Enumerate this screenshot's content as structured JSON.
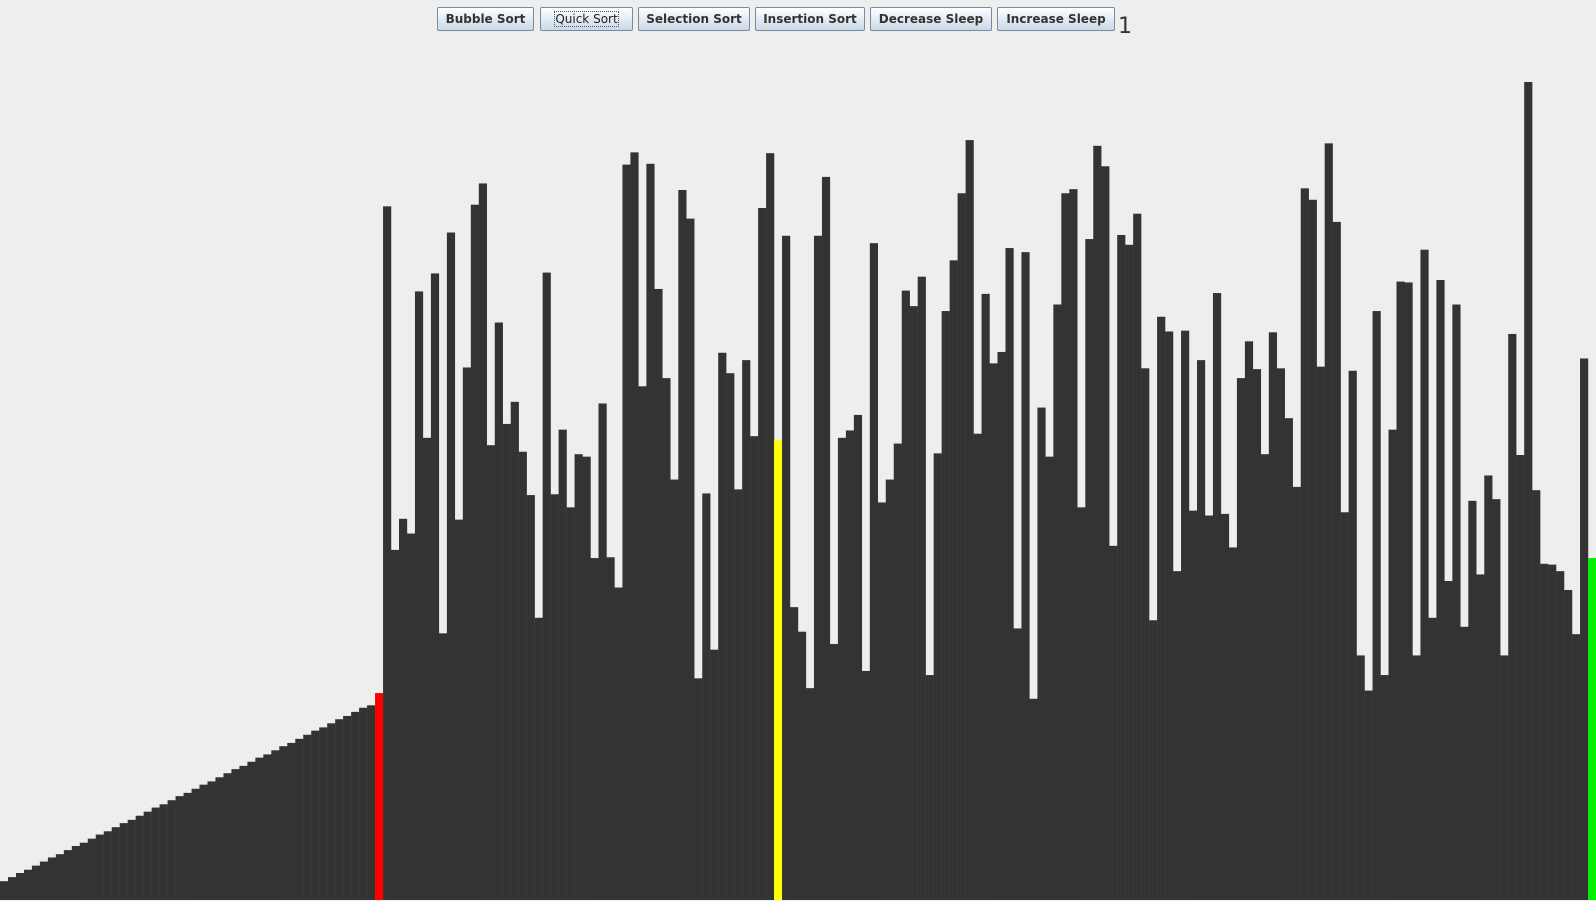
{
  "toolbar": {
    "buttons": [
      {
        "label": "Bubble Sort"
      },
      {
        "label": "Quick Sort"
      },
      {
        "label": "Selection Sort"
      },
      {
        "label": "Insertion Sort"
      },
      {
        "label": "Decrease Sleep"
      },
      {
        "label": "Increase Sleep"
      }
    ],
    "focused_button": "Quick Sort",
    "sleep_value": "1"
  },
  "colors": {
    "background": "#eeeeee",
    "bar": "#333333",
    "pivot": "#ff0000",
    "current": "#ffff00",
    "boundary": "#00ee00"
  },
  "chart_data": {
    "type": "bar",
    "description_of_state": "quick sort visualizer in progress",
    "sorted_prefix_count": 47,
    "ymax": 1000,
    "values": [
      23,
      28,
      33,
      37,
      42,
      47,
      52,
      56,
      61,
      66,
      70,
      75,
      80,
      84,
      89,
      94,
      98,
      103,
      108,
      113,
      117,
      122,
      127,
      131,
      136,
      141,
      145,
      150,
      155,
      160,
      164,
      169,
      174,
      178,
      183,
      188,
      192,
      197,
      202,
      207,
      211,
      216,
      221,
      225,
      230,
      235,
      238,
      253,
      848,
      428,
      466,
      448,
      744,
      565,
      766,
      326,
      816,
      465,
      651,
      850,
      876,
      556,
      706,
      582,
      609,
      548,
      495,
      345,
      767,
      496,
      575,
      480,
      545,
      542,
      418,
      607,
      419,
      382,
      899,
      914,
      628,
      900,
      747,
      638,
      514,
      868,
      833,
      271,
      497,
      306,
      669,
      644,
      502,
      660,
      567,
      846,
      913,
      562,
      812,
      358,
      328,
      259,
      812,
      884,
      313,
      565,
      574,
      593,
      280,
      803,
      486,
      514,
      558,
      745,
      726,
      762,
      275,
      546,
      720,
      782,
      864,
      929,
      570,
      741,
      656,
      670,
      797,
      332,
      792,
      246,
      602,
      542,
      728,
      864,
      869,
      480,
      808,
      922,
      897,
      433,
      813,
      801,
      839,
      650,
      342,
      713,
      695,
      402,
      696,
      476,
      660,
      470,
      742,
      472,
      431,
      638,
      683,
      649,
      545,
      694,
      650,
      589,
      505,
      870,
      856,
      652,
      925,
      829,
      474,
      647,
      299,
      256,
      720,
      275,
      575,
      756,
      755,
      299,
      795,
      345,
      758,
      390,
      728,
      334,
      488,
      398,
      519,
      490,
      299,
      692,
      544,
      1000,
      501,
      411,
      410,
      402,
      379,
      325,
      662,
      418
    ],
    "highlights": [
      {
        "index": 47,
        "color": "#ff0000"
      },
      {
        "index": 97,
        "color": "#ffff00"
      },
      {
        "index": 199,
        "color": "#00ee00"
      }
    ]
  }
}
